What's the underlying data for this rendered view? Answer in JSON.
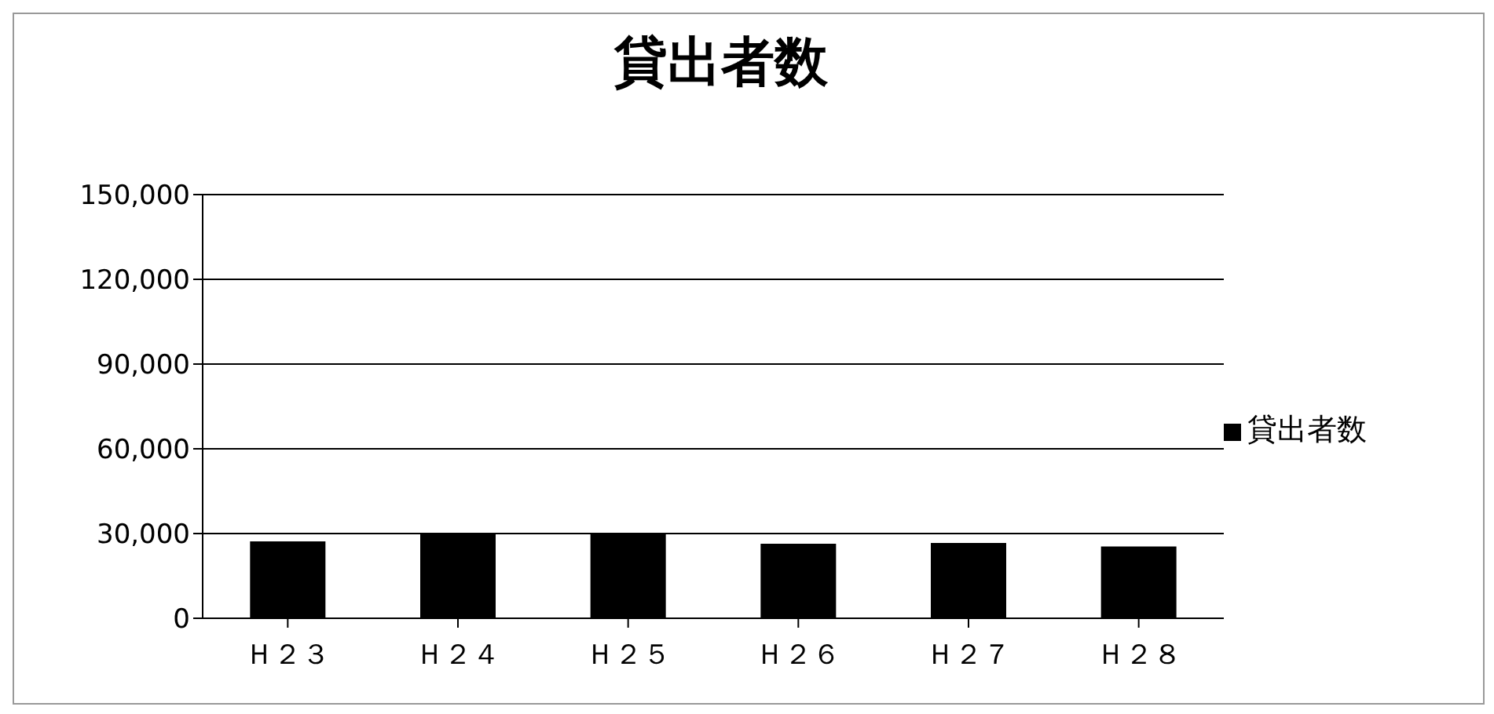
{
  "chart_data": {
    "type": "bar",
    "title": "貸出者数",
    "categories": [
      "Ｈ２３",
      "Ｈ２４",
      "Ｈ２５",
      "Ｈ２６",
      "Ｈ２７",
      "Ｈ２８"
    ],
    "series": [
      {
        "name": "貸出者数",
        "color": "#000000",
        "values": [
          27200,
          30000,
          30000,
          26400,
          26700,
          25400
        ]
      }
    ],
    "ylim": [
      0,
      150000
    ],
    "yticks": [
      0,
      {
        "value": 30000,
        "label": "30,000"
      },
      {
        "value": 60000,
        "label": "60,000"
      },
      {
        "value": 90000,
        "label": "90,000"
      },
      {
        "value": 120000,
        "label": "120,000"
      },
      {
        "value": 150000,
        "label": "150,000"
      }
    ],
    "grid": "y",
    "legend": "right"
  }
}
